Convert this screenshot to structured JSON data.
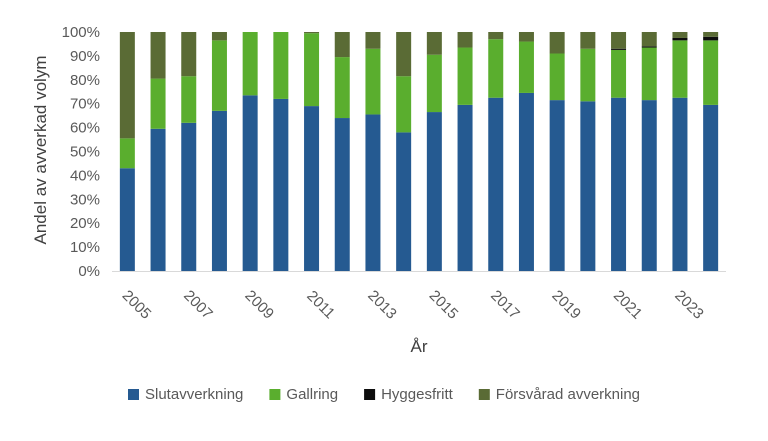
{
  "chart_data": {
    "type": "bar",
    "stacked": true,
    "title": "",
    "xlabel": "År",
    "ylabel": "Andel av avverkad volym",
    "ylim": [
      0,
      100
    ],
    "y_ticks": [
      "0%",
      "10%",
      "20%",
      "30%",
      "40%",
      "50%",
      "60%",
      "70%",
      "80%",
      "90%",
      "100%"
    ],
    "y_tick_values": [
      0,
      10,
      20,
      30,
      40,
      50,
      60,
      70,
      80,
      90,
      100
    ],
    "categories": [
      "2005",
      "2006",
      "2007",
      "2008",
      "2009",
      "2010",
      "2011",
      "2012",
      "2013",
      "2014",
      "2015",
      "2016",
      "2017",
      "2018",
      "2019",
      "2020",
      "2021",
      "2022",
      "2023",
      "2024"
    ],
    "x_tick_labels": [
      "2005",
      "2007",
      "2009",
      "2011",
      "2013",
      "2015",
      "2017",
      "2019",
      "2021",
      "2023"
    ],
    "series": [
      {
        "name": "Slutavverkning",
        "color": "#255a91",
        "values": [
          43,
          59.5,
          62,
          67,
          73.5,
          72,
          69,
          64,
          65.5,
          58,
          66.5,
          69.5,
          72.5,
          74.5,
          71.5,
          71,
          72.5,
          71.5,
          72.5,
          69.5
        ]
      },
      {
        "name": "Gallring",
        "color": "#5aae2e",
        "values": [
          12.5,
          21,
          19.5,
          29.5,
          26.5,
          28,
          30.5,
          25.5,
          27.5,
          23.5,
          24,
          24,
          24.5,
          21.5,
          19.5,
          22,
          20,
          22,
          24,
          27
        ]
      },
      {
        "name": "Hyggesfritt",
        "color": "#0d0d0d",
        "values": [
          0,
          0,
          0,
          0,
          0,
          0,
          0,
          0,
          0,
          0,
          0,
          0,
          0,
          0,
          0,
          0,
          0.5,
          0.5,
          1,
          1.5
        ]
      },
      {
        "name": "Försvårad avverkning",
        "color": "#5a6b35",
        "values": [
          44.5,
          19.5,
          18.5,
          3.5,
          0,
          0,
          0.5,
          10.5,
          7,
          18.5,
          9.5,
          6.5,
          3,
          4,
          9,
          7,
          7,
          6,
          2.5,
          2
        ]
      }
    ],
    "legend_position": "bottom",
    "grid": false
  }
}
